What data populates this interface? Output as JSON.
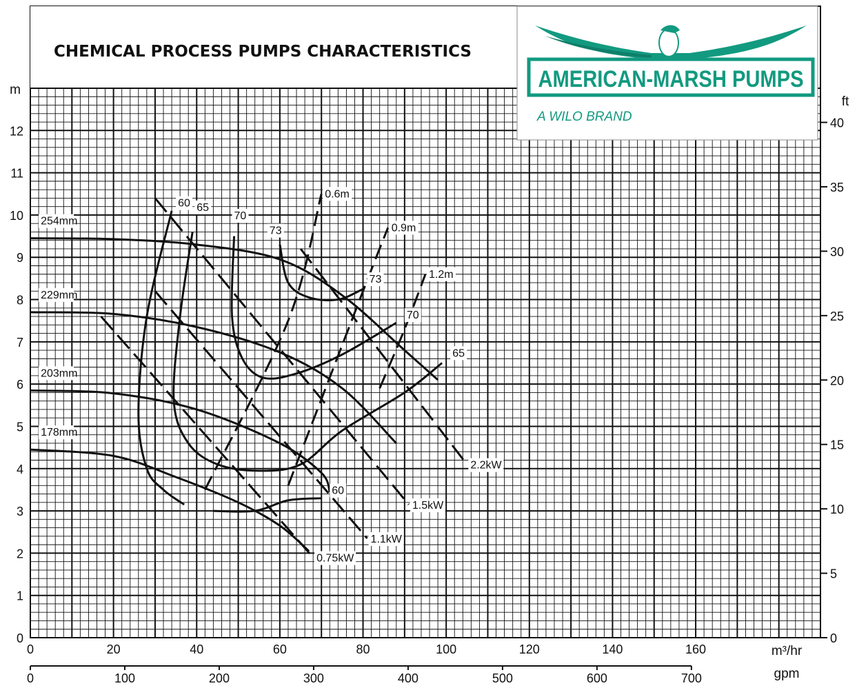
{
  "title": "CHEMICAL PROCESS PUMPS CHARACTERISTICS",
  "brand": {
    "name": "AMERICAN-MARSH PUMPS",
    "tagline": "A WILO BRAND",
    "color": "#129a80"
  },
  "chart_data": {
    "type": "line",
    "x_axis": {
      "label": "m³/hr",
      "range": [
        0,
        190
      ],
      "ticks": [
        0,
        20,
        40,
        60,
        80,
        100,
        120,
        140,
        160
      ]
    },
    "x2_axis": {
      "label": "gpm",
      "ticks": [
        0,
        100,
        200,
        300,
        400,
        500,
        600,
        700
      ]
    },
    "y_axis": {
      "label": "m",
      "range": [
        0,
        13
      ],
      "ticks": [
        0,
        1,
        2,
        3,
        4,
        5,
        6,
        7,
        8,
        9,
        10,
        11,
        12
      ]
    },
    "y2_axis": {
      "label": "ft",
      "ticks": [
        0,
        5,
        10,
        15,
        20,
        25,
        30,
        35,
        40
      ]
    },
    "grid": true,
    "impeller_curves": [
      {
        "name": "254mm",
        "points": [
          [
            0,
            9.45
          ],
          [
            20,
            9.43
          ],
          [
            40,
            9.3
          ],
          [
            60,
            8.95
          ],
          [
            75,
            8.1
          ],
          [
            90,
            6.8
          ],
          [
            98,
            6.1
          ]
        ]
      },
      {
        "name": "229mm",
        "points": [
          [
            0,
            7.7
          ],
          [
            20,
            7.66
          ],
          [
            40,
            7.35
          ],
          [
            60,
            6.75
          ],
          [
            75,
            5.9
          ],
          [
            88,
            4.6
          ]
        ]
      },
      {
        "name": "203mm",
        "points": [
          [
            0,
            5.85
          ],
          [
            20,
            5.78
          ],
          [
            40,
            5.4
          ],
          [
            60,
            4.6
          ],
          [
            70,
            3.9
          ],
          [
            72,
            3.45
          ]
        ]
      },
      {
        "name": "178mm",
        "points": [
          [
            0,
            4.45
          ],
          [
            20,
            4.3
          ],
          [
            35,
            3.8
          ],
          [
            50,
            3.2
          ],
          [
            60,
            2.65
          ],
          [
            67,
            2.05
          ]
        ]
      }
    ],
    "efficiency_curves": [
      {
        "name": "60",
        "points": [
          [
            34,
            10.1
          ],
          [
            28,
            7.6
          ],
          [
            26,
            5.3
          ],
          [
            28,
            4.0
          ],
          [
            32,
            3.5
          ],
          [
            37,
            3.15
          ]
        ]
      },
      {
        "name": "65",
        "points": [
          [
            39,
            9.6
          ],
          [
            36,
            7.6
          ],
          [
            34.5,
            5.6
          ],
          [
            38,
            4.6
          ],
          [
            45,
            4.1
          ],
          [
            55,
            3.95
          ],
          [
            65,
            4.1
          ],
          [
            75,
            4.9
          ],
          [
            90,
            5.8
          ],
          [
            99,
            6.5
          ]
        ]
      },
      {
        "name": "70",
        "points": [
          [
            49,
            9.5
          ],
          [
            48.5,
            7.6
          ],
          [
            51,
            6.6
          ],
          [
            56,
            6.15
          ],
          [
            64,
            6.25
          ],
          [
            75,
            6.7
          ],
          [
            88,
            7.45
          ]
        ]
      },
      {
        "name": "73",
        "points": [
          [
            60,
            9.3
          ],
          [
            62,
            8.4
          ],
          [
            67,
            8.05
          ],
          [
            74,
            8.0
          ],
          [
            80,
            8.25
          ]
        ]
      },
      {
        "name": "60",
        "points": [
          [
            44,
            3.0
          ],
          [
            54,
            3.0
          ],
          [
            62,
            3.25
          ],
          [
            70,
            3.3
          ]
        ]
      }
    ],
    "npsh_lines": [
      {
        "name": "0.6m",
        "points": [
          [
            42,
            3.5
          ],
          [
            62,
            7.5
          ],
          [
            70,
            10.5
          ]
        ]
      },
      {
        "name": "0.9m",
        "points": [
          [
            62,
            3.6
          ],
          [
            80,
            8.2
          ],
          [
            86,
            9.7
          ]
        ]
      },
      {
        "name": "1.2m",
        "points": [
          [
            84,
            5.9
          ],
          [
            90,
            7.3
          ],
          [
            95,
            8.6
          ]
        ]
      }
    ],
    "power_lines": [
      {
        "name": "0.75kW",
        "points": [
          [
            17,
            7.6
          ],
          [
            68,
            1.9
          ]
        ]
      },
      {
        "name": "1.1kW",
        "points": [
          [
            30,
            8.2
          ],
          [
            81,
            2.35
          ]
        ]
      },
      {
        "name": "1.5kW",
        "points": [
          [
            30,
            10.4
          ],
          [
            91,
            3.15
          ]
        ]
      },
      {
        "name": "2.2kW",
        "points": [
          [
            65,
            9.2
          ],
          [
            105,
            4.1
          ]
        ]
      }
    ]
  }
}
